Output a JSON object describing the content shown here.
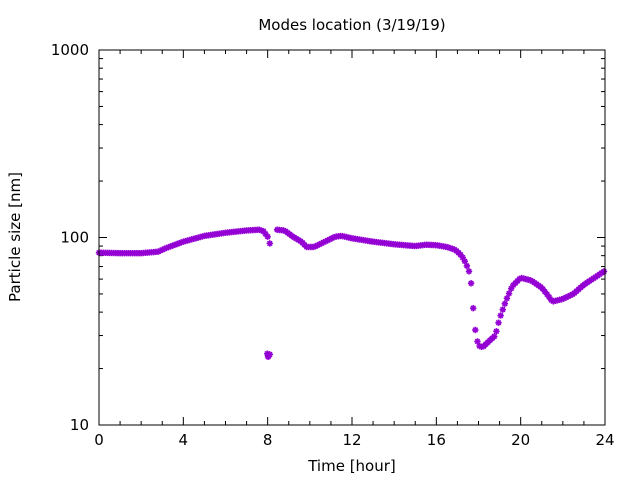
{
  "chart_data": {
    "type": "scatter",
    "title": "Modes location (3/19/19)",
    "xlabel": "Time [hour]",
    "ylabel": "Particle size [nm]",
    "xlim": [
      0,
      24
    ],
    "ylim": [
      10,
      1000
    ],
    "yscale": "log",
    "grid": false,
    "legend": "none",
    "x_ticks": [
      0,
      4,
      8,
      12,
      16,
      20,
      24
    ],
    "y_ticks": [
      10,
      100,
      1000
    ],
    "x_tick_labels": [
      "0",
      "4",
      "8",
      "12",
      "16",
      "20",
      "24"
    ],
    "y_tick_labels": [
      "10",
      "100",
      "1000"
    ],
    "marker": "asterisk",
    "color": "#9400d3",
    "series": [
      {
        "anchor_points": [
          [
            0,
            83
          ],
          [
            1,
            82.5
          ],
          [
            2,
            82.5
          ],
          [
            2.8,
            84
          ],
          [
            3.2,
            88
          ],
          [
            4,
            95
          ],
          [
            5,
            102
          ],
          [
            6,
            106
          ],
          [
            7,
            109
          ],
          [
            7.6,
            110
          ],
          [
            7.8,
            108
          ],
          [
            8.0,
            101
          ],
          [
            8.1,
            93
          ]
        ],
        "step_hours": 0.1
      },
      {
        "anchor_points": [
          [
            8.45,
            110
          ],
          [
            8.8,
            109
          ],
          [
            9.2,
            101
          ],
          [
            9.6,
            95
          ],
          [
            9.85,
            89
          ],
          [
            10.2,
            89
          ],
          [
            10.8,
            96
          ],
          [
            11.2,
            101
          ],
          [
            11.5,
            102
          ],
          [
            12,
            99
          ],
          [
            13,
            95
          ],
          [
            14,
            92
          ],
          [
            15,
            90
          ],
          [
            15.5,
            91.5
          ],
          [
            16,
            91
          ],
          [
            16.5,
            89
          ],
          [
            16.9,
            86
          ],
          [
            17.2,
            80
          ],
          [
            17.4,
            73
          ],
          [
            17.55,
            66
          ],
          [
            17.65,
            57
          ],
          [
            17.72,
            46
          ],
          [
            17.8,
            36
          ],
          [
            17.88,
            30
          ],
          [
            18.0,
            26.5
          ],
          [
            18.2,
            26
          ],
          [
            18.5,
            28
          ],
          [
            18.8,
            30
          ],
          [
            19.0,
            37
          ],
          [
            19.3,
            46
          ],
          [
            19.6,
            55
          ],
          [
            20.0,
            61
          ],
          [
            20.5,
            59
          ],
          [
            21.0,
            54
          ],
          [
            21.3,
            49
          ],
          [
            21.5,
            45.5
          ],
          [
            22.0,
            47
          ],
          [
            22.5,
            50
          ],
          [
            23.0,
            56
          ],
          [
            23.5,
            61
          ],
          [
            24,
            66.5
          ]
        ],
        "step_hours": 0.1
      },
      {
        "points": [
          [
            7.98,
            24
          ],
          [
            8.04,
            23.3
          ],
          [
            8.1,
            23.8
          ],
          [
            8.02,
            23.1
          ]
        ]
      }
    ]
  }
}
